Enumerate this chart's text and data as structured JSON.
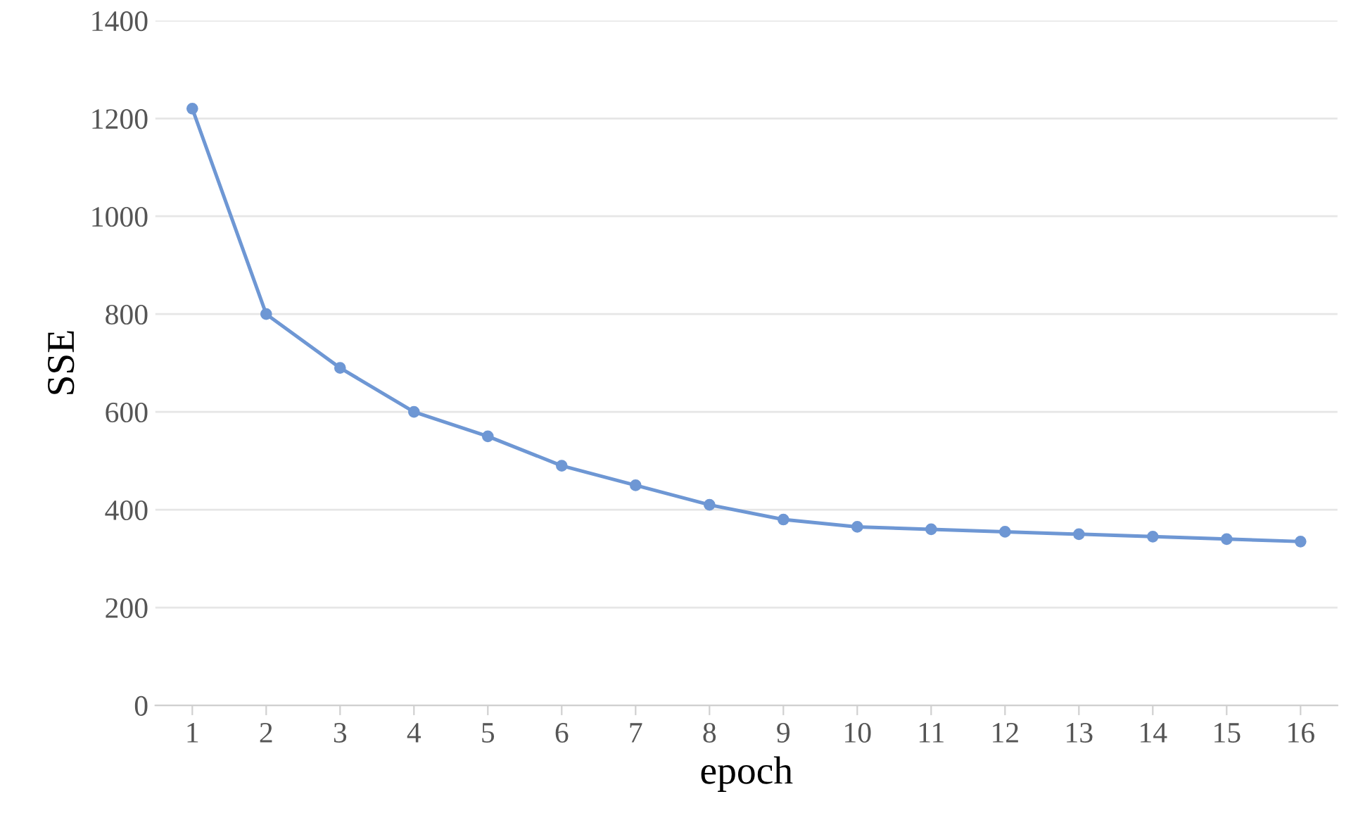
{
  "chart_data": {
    "type": "line",
    "xlabel": "epoch",
    "ylabel": "SSE",
    "categories": [
      "1",
      "2",
      "3",
      "4",
      "5",
      "6",
      "7",
      "8",
      "9",
      "10",
      "11",
      "12",
      "13",
      "14",
      "15",
      "16"
    ],
    "series": [
      {
        "color": "#6e97d4",
        "values": [
          1220,
          800,
          690,
          600,
          550,
          490,
          450,
          410,
          380,
          365,
          360,
          355,
          350,
          345,
          340,
          335
        ]
      }
    ],
    "ylim": [
      0,
      1400
    ],
    "yticks": [
      0,
      200,
      400,
      600,
      800,
      1000,
      1200,
      1400
    ],
    "grid": "y",
    "marker": "circle",
    "line_style": "solid"
  }
}
